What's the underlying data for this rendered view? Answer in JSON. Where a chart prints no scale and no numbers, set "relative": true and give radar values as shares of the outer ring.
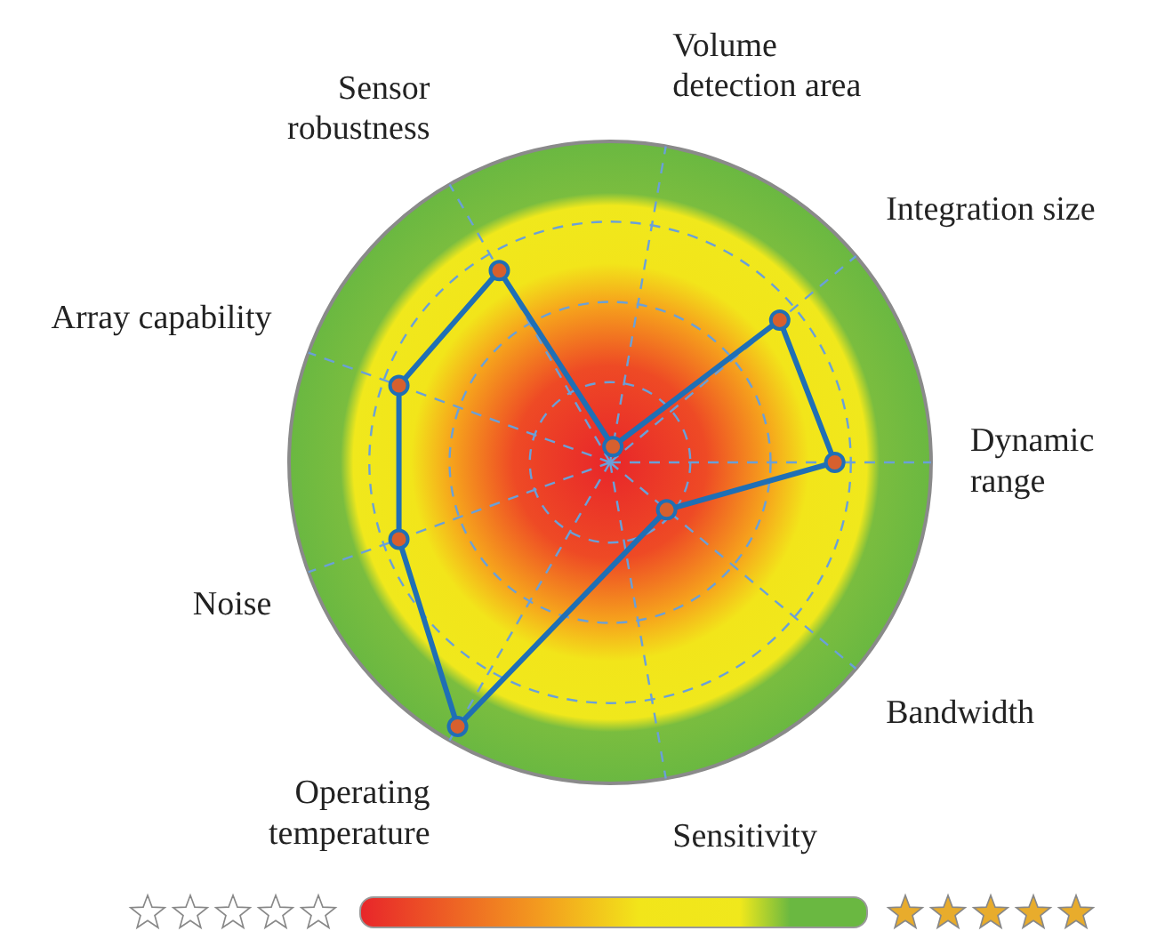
{
  "chart_data": {
    "type": "radar",
    "relative": true,
    "categories": [
      "Volume\ndetection area",
      "Integration size",
      "Dynamic\nrange",
      "Bandwidth",
      "Sensitivity",
      "Operating\ntemperature",
      "Noise",
      "Array capability",
      "Sensor\nrobustness"
    ],
    "series": [
      {
        "color": "#1f6fb5",
        "values": [
          0.05,
          0.69,
          0.7,
          0.23,
          null,
          0.95,
          0.7,
          0.7,
          0.69
        ]
      }
    ],
    "marker": "circle",
    "grid": true,
    "legend": false
  }
}
